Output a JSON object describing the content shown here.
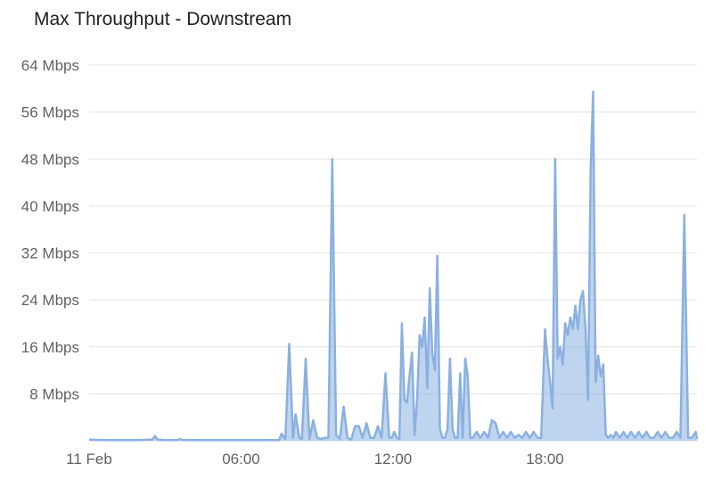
{
  "chart_data": {
    "type": "area",
    "title": "Max Throughput - Downstream",
    "ylim": [
      0,
      64
    ],
    "y_ticks": [
      "8 Mbps",
      "16 Mbps",
      "24 Mbps",
      "32 Mbps",
      "40 Mbps",
      "48 Mbps",
      "56 Mbps",
      "64 Mbps"
    ],
    "y_tick_values": [
      8,
      16,
      24,
      32,
      40,
      48,
      56,
      64
    ],
    "x_ticks": [
      "11 Feb",
      "06:00",
      "12:00",
      "18:00"
    ],
    "x_tick_values": [
      0,
      6,
      12,
      18
    ],
    "xlim": [
      0,
      24
    ],
    "grid": true,
    "color": "#8bb0e0",
    "series": [
      {
        "x": [
          0,
          0.5,
          1,
          1.5,
          2,
          2.5,
          2.6,
          2.7,
          3,
          3.5,
          3.6,
          3.7,
          4,
          4.5,
          5,
          5.5,
          6,
          6.5,
          7,
          7.5,
          7.6,
          7.75,
          7.9,
          8.05,
          8.15,
          8.3,
          8.4,
          8.55,
          8.7,
          8.85,
          9.0,
          9.15,
          9.3,
          9.45,
          9.6,
          9.75,
          9.9,
          10.05,
          10.2,
          10.35,
          10.5,
          10.65,
          10.8,
          10.95,
          11.1,
          11.25,
          11.4,
          11.55,
          11.7,
          11.85,
          11.95,
          12.05,
          12.15,
          12.25,
          12.35,
          12.45,
          12.55,
          12.65,
          12.75,
          12.85,
          12.95,
          13.05,
          13.15,
          13.25,
          13.35,
          13.45,
          13.55,
          13.65,
          13.75,
          13.85,
          13.95,
          14.05,
          14.15,
          14.25,
          14.35,
          14.45,
          14.55,
          14.65,
          14.75,
          14.85,
          14.95,
          15.05,
          15.15,
          15.3,
          15.45,
          15.6,
          15.75,
          15.9,
          16.05,
          16.2,
          16.35,
          16.5,
          16.65,
          16.8,
          16.95,
          17.1,
          17.25,
          17.4,
          17.55,
          17.7,
          17.85,
          18.0,
          18.1,
          18.2,
          18.3,
          18.4,
          18.5,
          18.6,
          18.7,
          18.8,
          18.9,
          19.0,
          19.1,
          19.2,
          19.3,
          19.4,
          19.5,
          19.6,
          19.7,
          19.8,
          19.9,
          20.0,
          20.1,
          20.2,
          20.3,
          20.4,
          20.5,
          20.6,
          20.7,
          20.8,
          20.95,
          21.1,
          21.25,
          21.4,
          21.55,
          21.7,
          21.85,
          22.0,
          22.15,
          22.3,
          22.45,
          22.6,
          22.75,
          22.9,
          23.05,
          23.2,
          23.35,
          23.5,
          23.65,
          23.8,
          23.95,
          24.0
        ],
        "y": [
          0.2,
          0.1,
          0.1,
          0.1,
          0.1,
          0.2,
          0.8,
          0.2,
          0.1,
          0.1,
          0.3,
          0.1,
          0.1,
          0.1,
          0.1,
          0.1,
          0.1,
          0.1,
          0.1,
          0.1,
          1.2,
          0.3,
          16.5,
          0.5,
          4.5,
          0.5,
          0.3,
          14,
          0.3,
          3.5,
          0.5,
          0.3,
          0.5,
          0.5,
          48,
          1.0,
          0.3,
          5.8,
          0.5,
          0.2,
          2.5,
          2.5,
          0.5,
          3.0,
          0.5,
          0.5,
          2.5,
          0.5,
          11.5,
          0.5,
          0.5,
          1.5,
          0.5,
          0.3,
          20,
          7,
          6.5,
          11,
          15,
          1,
          7,
          18,
          16,
          21,
          9,
          26,
          15,
          12,
          31.5,
          2,
          0.5,
          0.5,
          2,
          14,
          2,
          0.5,
          0.5,
          11.5,
          0.5,
          14,
          11,
          0.5,
          0.5,
          1.5,
          0.5,
          1.5,
          0.5,
          3.5,
          3.0,
          0.5,
          1.5,
          0.5,
          1.5,
          0.5,
          1.0,
          0.5,
          1.5,
          0.5,
          1.5,
          0.5,
          0.5,
          19,
          14,
          10,
          5.5,
          48,
          14,
          16,
          13,
          20,
          18,
          21,
          19,
          23,
          19,
          24,
          25.5,
          19,
          7,
          46,
          59.5,
          10,
          14.5,
          11,
          13,
          1,
          0.5,
          1,
          0.5,
          1.5,
          0.5,
          1.5,
          0.5,
          1.5,
          0.5,
          1.5,
          0.5,
          1.5,
          0.5,
          0.5,
          1.5,
          0.5,
          1.5,
          0.5,
          0.5,
          1.5,
          0.5,
          38.5,
          0.5,
          0.5,
          1.5,
          0.3
        ]
      }
    ]
  }
}
